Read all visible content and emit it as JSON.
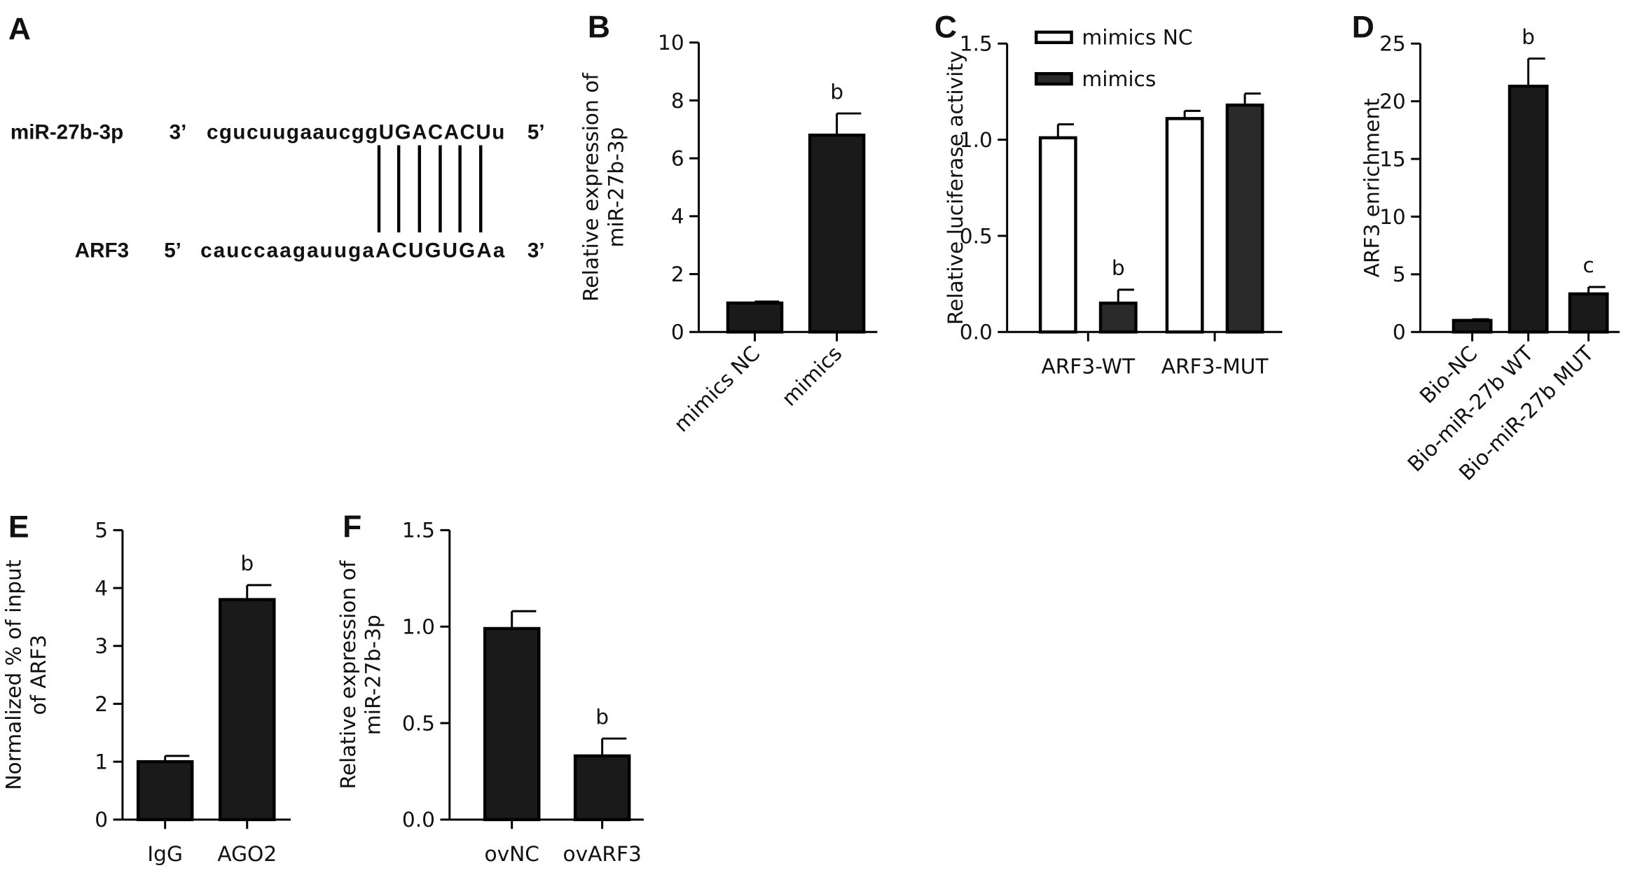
{
  "panel_a": {
    "panel": "A",
    "rows": [
      {
        "name": "miR-27b-3p",
        "start": "3’",
        "sequence": "cgucuugaaucggUGACACUu",
        "end": "5’"
      },
      {
        "name": "ARF3",
        "start": "5’",
        "sequence": "cauccaagauugaACUGUGAa",
        "end": "3’"
      }
    ]
  },
  "chart_data": [
    {
      "type": "bar",
      "panel": "B",
      "ylabel": [
        "Relative expression of",
        "miR-27b-3p"
      ],
      "categories": [
        "mimics NC",
        "mimics"
      ],
      "values": [
        1.0,
        6.8
      ],
      "errors": [
        0.05,
        0.75
      ],
      "annotations": [
        null,
        "b"
      ],
      "color": "#1a1a1a",
      "ylim": [
        0,
        10
      ],
      "yticks": [
        0,
        2,
        4,
        6,
        8,
        10
      ]
    },
    {
      "type": "grouped-bar",
      "panel": "C",
      "ylabel": [
        "Relative luciferase activity"
      ],
      "categories": [
        "ARF3-WT",
        "ARF3-MUT"
      ],
      "series": [
        {
          "name": "mimics NC",
          "color": "#ffffff",
          "values": [
            1.01,
            1.11
          ],
          "errors": [
            0.07,
            0.04
          ],
          "annotations": [
            null,
            null
          ]
        },
        {
          "name": "mimics",
          "color": "#2a2a2a",
          "values": [
            0.15,
            1.18
          ],
          "errors": [
            0.07,
            0.06
          ],
          "annotations": [
            "b",
            null
          ]
        }
      ],
      "ylim": [
        0,
        1.5
      ],
      "yticks": [
        {
          "value": 0,
          "label": "0.0"
        },
        0.5,
        {
          "value": 1,
          "label": "1.0"
        },
        1.5
      ],
      "legend": "top-left"
    },
    {
      "type": "bar",
      "panel": "D",
      "ylabel": [
        "ARF3 enrichment"
      ],
      "categories": [
        "Bio-NC",
        "Bio-miR-27b WT",
        "Bio-miR-27b MUT"
      ],
      "values": [
        1.0,
        21.3,
        3.3
      ],
      "errors": [
        0.1,
        2.4,
        0.6
      ],
      "annotations": [
        null,
        "b",
        "c"
      ],
      "color": "#1a1a1a",
      "ylim": [
        0,
        25
      ],
      "yticks": [
        0,
        5,
        10,
        15,
        20,
        25
      ]
    },
    {
      "type": "bar",
      "panel": "E",
      "ylabel": [
        "Normalized % of input",
        "of ARF3"
      ],
      "categories": [
        "IgG",
        "AGO2"
      ],
      "values": [
        1.0,
        3.8
      ],
      "errors": [
        0.1,
        0.25
      ],
      "annotations": [
        null,
        "b"
      ],
      "color": "#1a1a1a",
      "ylim": [
        0,
        5
      ],
      "yticks": [
        0,
        1,
        2,
        3,
        4,
        5
      ]
    },
    {
      "type": "bar",
      "panel": "F",
      "ylabel": [
        "Relative expression of",
        "miR-27b-3p"
      ],
      "categories": [
        "ovNC",
        "ovARF3"
      ],
      "values": [
        0.99,
        0.33
      ],
      "errors": [
        0.09,
        0.09
      ],
      "annotations": [
        null,
        "b"
      ],
      "color": "#1a1a1a",
      "ylim": [
        0,
        1.5
      ],
      "yticks": [
        {
          "value": 0,
          "label": "0.0"
        },
        0.5,
        {
          "value": 1,
          "label": "1.0"
        },
        1.5
      ]
    }
  ]
}
